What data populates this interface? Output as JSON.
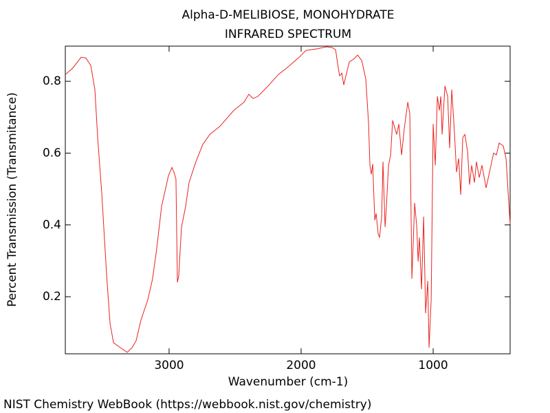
{
  "chart_data": {
    "type": "line",
    "title": "Alpha-D-MELIBIOSE, MONOHYDRATE",
    "subtitle": "INFRARED SPECTRUM",
    "x_label": "Wavenumber (cm-1)",
    "y_label": "Percent Transmission (Transmitance)",
    "source": "NIST Chemistry WebBook (https://webbook.nist.gov/chemistry)",
    "color": "#e8211d",
    "xlim": [
      3786,
      417
    ],
    "ylim": [
      0.041,
      0.898
    ],
    "xticks": [
      3000,
      2000,
      1000
    ],
    "yticks": [
      0.2,
      0.4,
      0.6,
      0.8
    ],
    "x": [
      3786,
      3734,
      3666,
      3630,
      3593,
      3562,
      3541,
      3510,
      3473,
      3447,
      3421,
      3369,
      3317,
      3281,
      3250,
      3213,
      3161,
      3125,
      3093,
      3057,
      3005,
      2979,
      2963,
      2948,
      2937,
      2927,
      2906,
      2875,
      2849,
      2797,
      2745,
      2692,
      2614,
      2510,
      2432,
      2396,
      2364,
      2328,
      2250,
      2172,
      2093,
      2015,
      1963,
      1885,
      1807,
      1765,
      1739,
      1718,
      1708,
      1692,
      1677,
      1661,
      1635,
      1598,
      1572,
      1541,
      1510,
      1489,
      1479,
      1468,
      1458,
      1442,
      1432,
      1416,
      1406,
      1390,
      1380,
      1364,
      1354,
      1338,
      1322,
      1307,
      1291,
      1276,
      1260,
      1239,
      1218,
      1192,
      1177,
      1161,
      1140,
      1124,
      1114,
      1104,
      1088,
      1072,
      1057,
      1041,
      1031,
      1015,
      1000,
      984,
      968,
      953,
      942,
      932,
      911,
      890,
      875,
      859,
      838,
      823,
      807,
      791,
      776,
      760,
      739,
      724,
      708,
      687,
      672,
      651,
      630,
      599,
      562,
      542,
      521,
      500,
      469,
      448,
      432,
      417
    ],
    "values": [
      0.819,
      0.835,
      0.867,
      0.865,
      0.844,
      0.777,
      0.643,
      0.489,
      0.259,
      0.125,
      0.072,
      0.058,
      0.045,
      0.058,
      0.077,
      0.135,
      0.192,
      0.25,
      0.336,
      0.451,
      0.537,
      0.56,
      0.547,
      0.528,
      0.24,
      0.259,
      0.394,
      0.451,
      0.518,
      0.576,
      0.624,
      0.652,
      0.675,
      0.719,
      0.742,
      0.764,
      0.752,
      0.758,
      0.787,
      0.819,
      0.842,
      0.867,
      0.886,
      0.89,
      0.896,
      0.894,
      0.888,
      0.835,
      0.815,
      0.823,
      0.79,
      0.815,
      0.854,
      0.863,
      0.873,
      0.858,
      0.806,
      0.681,
      0.566,
      0.541,
      0.57,
      0.413,
      0.432,
      0.374,
      0.365,
      0.423,
      0.576,
      0.394,
      0.451,
      0.566,
      0.595,
      0.691,
      0.671,
      0.652,
      0.681,
      0.595,
      0.671,
      0.742,
      0.71,
      0.25,
      0.461,
      0.394,
      0.298,
      0.365,
      0.221,
      0.423,
      0.154,
      0.244,
      0.058,
      0.192,
      0.681,
      0.566,
      0.758,
      0.719,
      0.758,
      0.652,
      0.787,
      0.758,
      0.614,
      0.777,
      0.652,
      0.547,
      0.585,
      0.484,
      0.643,
      0.652,
      0.604,
      0.512,
      0.566,
      0.518,
      0.576,
      0.532,
      0.566,
      0.503,
      0.566,
      0.6,
      0.595,
      0.628,
      0.62,
      0.585,
      0.489,
      0.403
    ]
  }
}
